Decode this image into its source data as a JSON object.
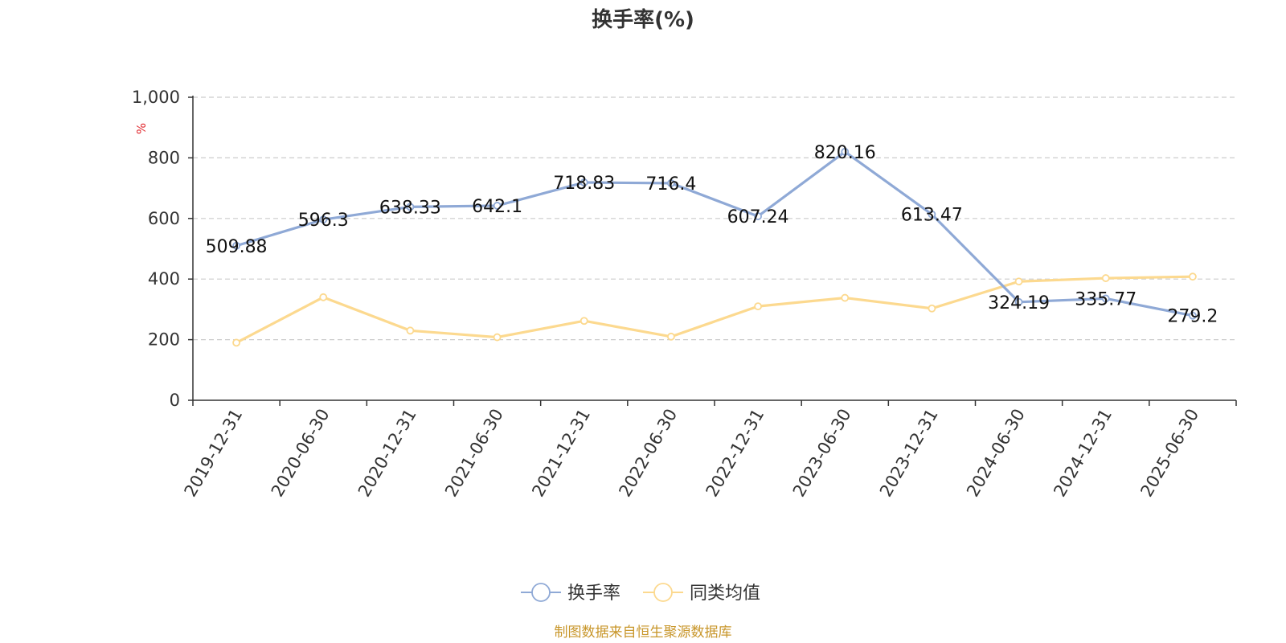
{
  "chart_data": {
    "type": "line",
    "title": "换手率(%)",
    "ylabel": "%",
    "ylim": [
      0,
      1000
    ],
    "yticks": [
      "0",
      "200",
      "400",
      "600",
      "800",
      "1,000"
    ],
    "ytick_values": [
      0,
      200,
      400,
      600,
      800,
      1000
    ],
    "categories": [
      "2019-12-31",
      "2020-06-30",
      "2020-12-31",
      "2021-06-30",
      "2021-12-31",
      "2022-06-30",
      "2022-12-31",
      "2023-06-30",
      "2023-12-31",
      "2024-06-30",
      "2024-12-31",
      "2025-06-30"
    ],
    "grid": true,
    "legend_position": "bottom-center",
    "series": [
      {
        "name": "换手率",
        "color": "#8fa9d6",
        "values": [
          509.88,
          596.3,
          638.33,
          642.1,
          718.83,
          716.4,
          607.24,
          820.16,
          613.47,
          324.19,
          335.77,
          279.2
        ],
        "labels": [
          "509.88",
          "596.3",
          "638.33",
          "642.1",
          "718.83",
          "716.4",
          "607.24",
          "820.16",
          "613.47",
          "324.19",
          "335.77",
          "279.2"
        ]
      },
      {
        "name": "同类均值",
        "color": "#fcd98f",
        "values": [
          190,
          340,
          230,
          208,
          262,
          210,
          310,
          338,
          303,
          392,
          403,
          408
        ]
      }
    ]
  },
  "source": "制图数据来自恒生聚源数据库"
}
